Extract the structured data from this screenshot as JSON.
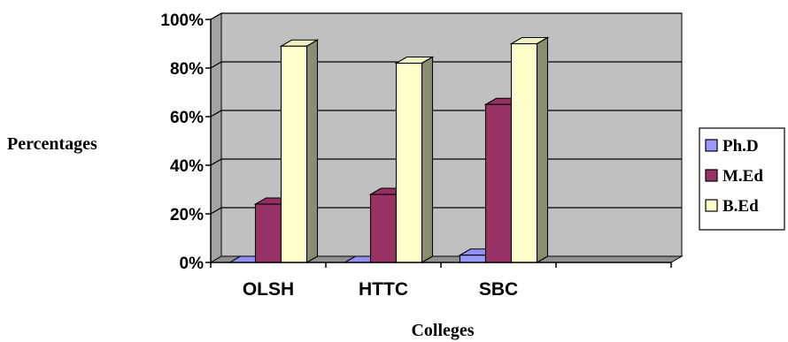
{
  "chart_data": {
    "type": "bar",
    "style": "3d-clustered-column",
    "categories": [
      "OLSH",
      "HTTC",
      "SBC",
      ""
    ],
    "series": [
      {
        "name": "Ph.D",
        "values": [
          0,
          0,
          3,
          null
        ],
        "color": "#9999ff"
      },
      {
        "name": "M.Ed",
        "values": [
          24,
          28,
          65,
          null
        ],
        "color": "#993366"
      },
      {
        "name": "B.Ed",
        "values": [
          89,
          82,
          90,
          null
        ],
        "color": "#ffffcc"
      }
    ],
    "yticks": [
      "0%",
      "20%",
      "40%",
      "60%",
      "80%",
      "100%"
    ],
    "ylim": [
      0,
      100
    ],
    "xlabel": "Colleges",
    "ylabel": "Percentages",
    "legend_position": "right",
    "grid": true,
    "wall_color": "#c0c0c0"
  }
}
